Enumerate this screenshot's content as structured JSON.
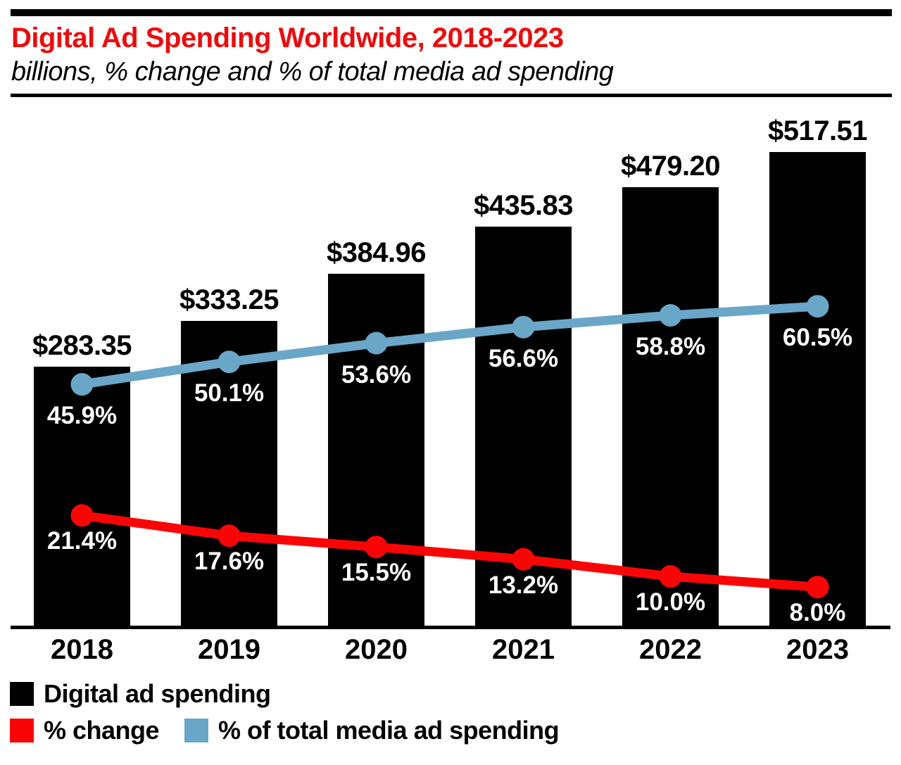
{
  "header": {
    "title": "Digital Ad Spending Worldwide, 2018-2023",
    "subtitle": "billions, % change and % of total media ad spending"
  },
  "colors": {
    "title_red": "#e90d0d",
    "bar_black": "#000000",
    "pct_change_red": "#fa0505",
    "media_share_blue": "#6aa6c8",
    "inner_label_white": "#ffffff",
    "background": "#ffffff"
  },
  "chart_data": {
    "type": "bar",
    "title": "Digital Ad Spending Worldwide, 2018-2023",
    "subtitle": "billions, % change and % of total media ad spending",
    "categories": [
      "2018",
      "2019",
      "2020",
      "2021",
      "2022",
      "2023"
    ],
    "series": [
      {
        "name": "Digital ad spending",
        "type": "bar",
        "unit": "USD billions",
        "values": [
          283.35,
          333.25,
          384.96,
          435.83,
          479.2,
          517.51
        ],
        "labels": [
          "$283.35",
          "$333.25",
          "$384.96",
          "$435.83",
          "$479.20",
          "$517.51"
        ]
      },
      {
        "name": "% change",
        "type": "line",
        "unit": "percent",
        "values": [
          21.4,
          17.6,
          15.5,
          13.2,
          10.0,
          8.0
        ],
        "labels": [
          "21.4%",
          "17.6%",
          "15.5%",
          "13.2%",
          "10.0%",
          "8.0%"
        ]
      },
      {
        "name": "% of total media ad spending",
        "type": "line",
        "unit": "percent",
        "values": [
          45.9,
          50.1,
          53.6,
          56.6,
          58.8,
          60.5
        ],
        "labels": [
          "45.9%",
          "50.1%",
          "53.6%",
          "56.6%",
          "58.8%",
          "60.5%"
        ]
      }
    ],
    "axes": {
      "x_tick_labels": [
        "2018",
        "2019",
        "2020",
        "2021",
        "2022",
        "2023"
      ],
      "y_axis_visible": false,
      "value_axis_range": [
        0,
        517.51
      ],
      "percent_axis_range": [
        0,
        65
      ],
      "grid": false
    },
    "legend_position": "bottom-left"
  },
  "legend": {
    "items": [
      {
        "label": "Digital ad spending",
        "color": "#000000"
      },
      {
        "label": "% change",
        "color": "#fa0505"
      },
      {
        "label": "% of total media ad spending",
        "color": "#6aa6c8"
      }
    ]
  }
}
